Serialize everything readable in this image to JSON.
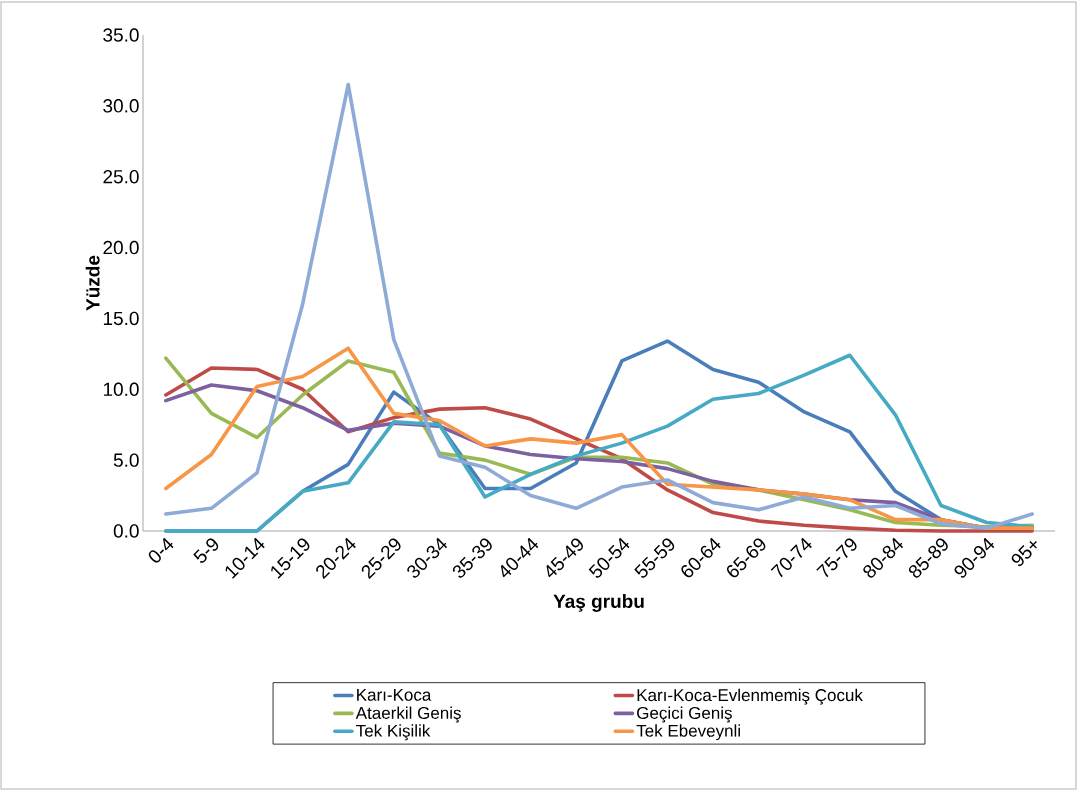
{
  "chart_data": {
    "type": "line",
    "xlabel": "Yaş grubu",
    "ylabel": "Yüzde",
    "categories": [
      "0-4",
      "5-9",
      "10-14",
      "15-19",
      "20-24",
      "25-29",
      "30-34",
      "35-39",
      "40-44",
      "45-49",
      "50-54",
      "55-59",
      "60-64",
      "65-69",
      "70-74",
      "75-79",
      "80-84",
      "85-89",
      "90-94",
      "95+"
    ],
    "ylim": [
      0,
      35
    ],
    "yticks": [
      {
        "value": 0,
        "label": "0.0"
      },
      {
        "value": 5,
        "label": "5.0"
      },
      {
        "value": 10,
        "label": "10.0"
      },
      {
        "value": 15,
        "label": "15.0"
      },
      {
        "value": 20,
        "label": "20.0"
      },
      {
        "value": 25,
        "label": "25.0"
      },
      {
        "value": 30,
        "label": "30.0"
      },
      {
        "value": 35,
        "label": "35.0"
      }
    ],
    "legend": "bottom",
    "marker": "none",
    "line_style": "solid",
    "series": [
      {
        "name": "Karı-Koca",
        "color": "#4a7ebb",
        "values": [
          0,
          0,
          0,
          2.8,
          4.7,
          9.8,
          7.5,
          3.0,
          3.0,
          4.8,
          12.0,
          13.4,
          11.4,
          10.5,
          8.4,
          7.0,
          2.8,
          0.8,
          0.2,
          0.3
        ]
      },
      {
        "name": "Karı-Koca-Evlenmemiş Çocuk",
        "color": "#be4b48",
        "values": [
          9.6,
          11.5,
          11.4,
          10.0,
          7.0,
          8.0,
          8.6,
          8.7,
          7.9,
          6.5,
          5.1,
          2.9,
          1.3,
          0.7,
          0.4,
          0.2,
          0.05,
          0,
          0,
          0
        ]
      },
      {
        "name": "Ataerkil Geniş",
        "color": "#98b954",
        "values": [
          12.2,
          8.3,
          6.6,
          9.6,
          12.0,
          11.2,
          5.5,
          5.0,
          4.0,
          5.2,
          5.2,
          4.8,
          3.3,
          2.9,
          2.2,
          1.5,
          0.6,
          0.4,
          0.3,
          0.4
        ]
      },
      {
        "name": "Geçici Geniş",
        "color": "#7d60a0",
        "values": [
          9.2,
          10.3,
          9.9,
          8.7,
          7.1,
          7.6,
          7.4,
          6.0,
          5.4,
          5.1,
          4.9,
          4.4,
          3.5,
          2.9,
          2.6,
          2.2,
          2.0,
          0.8,
          0.2,
          0.2
        ]
      },
      {
        "name": "Tek Kişilik",
        "color": "#46aac5",
        "values": [
          0,
          0,
          0,
          2.8,
          3.4,
          7.7,
          7.5,
          2.4,
          4.0,
          5.3,
          6.2,
          7.4,
          9.3,
          9.7,
          11.0,
          12.4,
          8.2,
          1.8,
          0.6,
          0.3
        ]
      },
      {
        "name": "Tek Ebeveynli",
        "color": "#f79646",
        "values": [
          3.0,
          5.4,
          10.2,
          10.9,
          12.9,
          8.3,
          7.8,
          6.0,
          6.5,
          6.2,
          6.8,
          3.3,
          3.1,
          2.9,
          2.6,
          2.2,
          0.8,
          0.8,
          0.2,
          0.2
        ]
      },
      {
        "color": "#8eaad6",
        "values": [
          1.2,
          1.6,
          4.1,
          16.0,
          31.5,
          13.5,
          5.3,
          4.5,
          2.5,
          1.6,
          3.1,
          3.6,
          2.0,
          1.5,
          2.4,
          1.6,
          1.8,
          0.5,
          0.2,
          1.2
        ]
      }
    ]
  }
}
